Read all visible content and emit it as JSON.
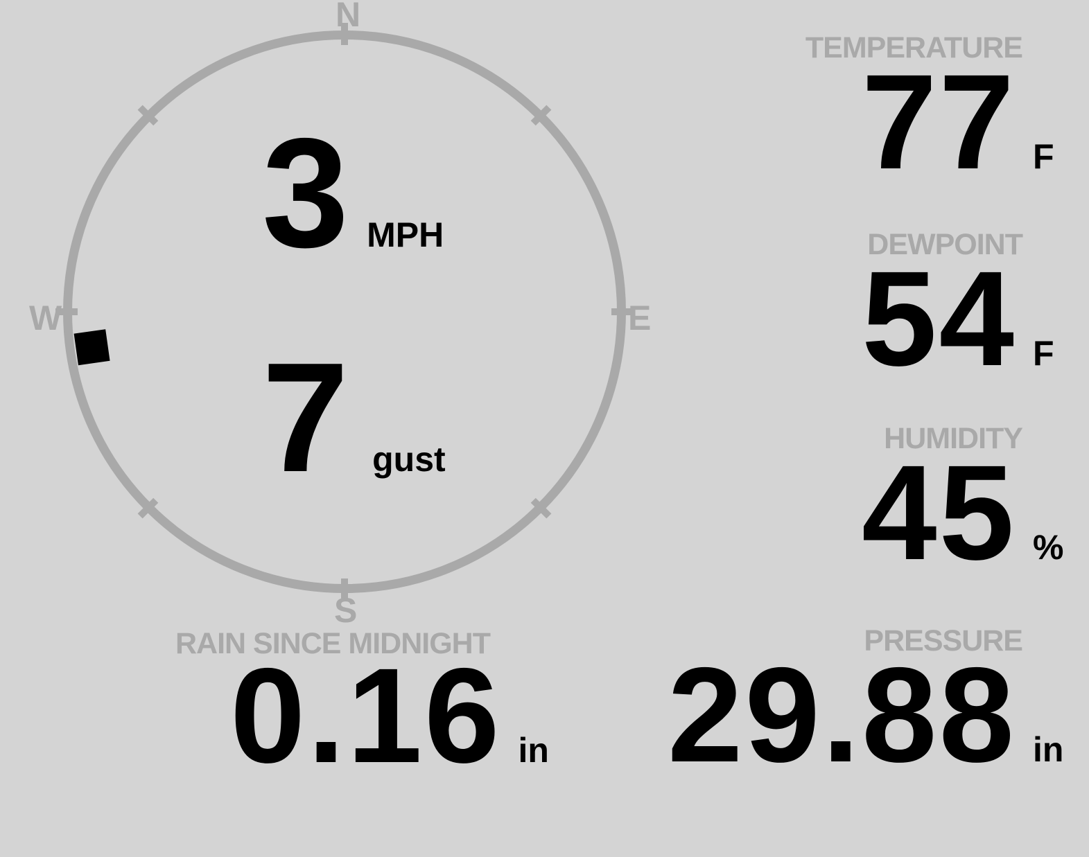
{
  "theme": {
    "background": "#d4d4d4",
    "muted_gray": "#a9a9a9",
    "foreground": "#000000"
  },
  "compass": {
    "cardinal_labels": {
      "north": "N",
      "east": "E",
      "south": "S",
      "west": "W"
    },
    "wind_speed": {
      "value": "3",
      "unit": "MPH"
    },
    "wind_gust": {
      "value": "7",
      "unit": "gust"
    },
    "direction_degrees": 262
  },
  "metrics": {
    "temperature": {
      "label": "TEMPERATURE",
      "value": "77",
      "unit": "F"
    },
    "dewpoint": {
      "label": "DEWPOINT",
      "value": "54",
      "unit": "F"
    },
    "humidity": {
      "label": "HUMIDITY",
      "value": "45",
      "unit": "%"
    },
    "rain": {
      "label": "RAIN SINCE MIDNIGHT",
      "value": "0.16",
      "unit": "in"
    },
    "pressure": {
      "label": "PRESSURE",
      "value": "29.88",
      "unit": "in"
    }
  }
}
